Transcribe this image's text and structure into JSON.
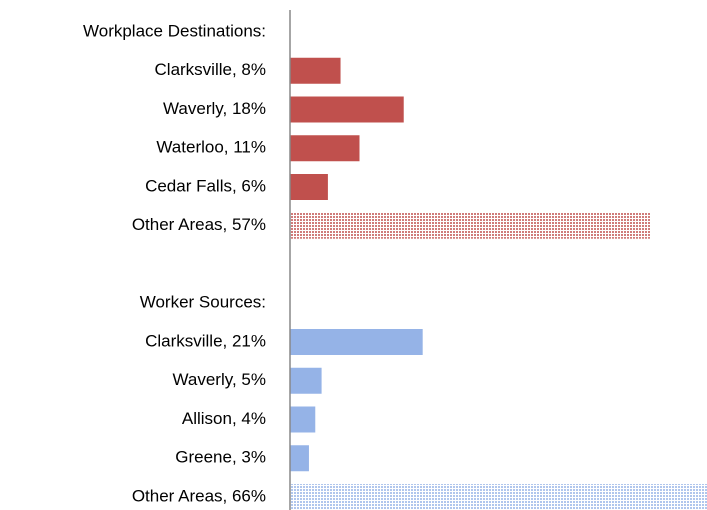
{
  "chart_data": {
    "type": "bar",
    "orientation": "horizontal",
    "categories": [
      "Workplace Destinations:",
      "Clarksville, 8%",
      "Waverly, 18%",
      "Waterloo, 11%",
      "Cedar Falls, 6%",
      "Other Areas, 57%",
      null,
      "Worker Sources:",
      "Clarksville, 21%",
      "Waverly, 5%",
      "Allison, 4%",
      "Greene, 3%",
      "Other Areas, 66%"
    ],
    "values": [
      null,
      8,
      18,
      11,
      6,
      57,
      null,
      null,
      21,
      5,
      4,
      3,
      66
    ],
    "colors": [
      null,
      "#c0504d",
      "#c0504d",
      "#c0504d",
      "#c0504d",
      "#c0504d",
      null,
      null,
      "#95b3e7",
      "#95b3e7",
      "#95b3e7",
      "#95b3e7",
      "#95b3e7"
    ],
    "hatched": [
      false,
      false,
      false,
      false,
      false,
      true,
      false,
      false,
      false,
      false,
      false,
      false,
      true
    ],
    "xlim": [
      0,
      66
    ]
  }
}
